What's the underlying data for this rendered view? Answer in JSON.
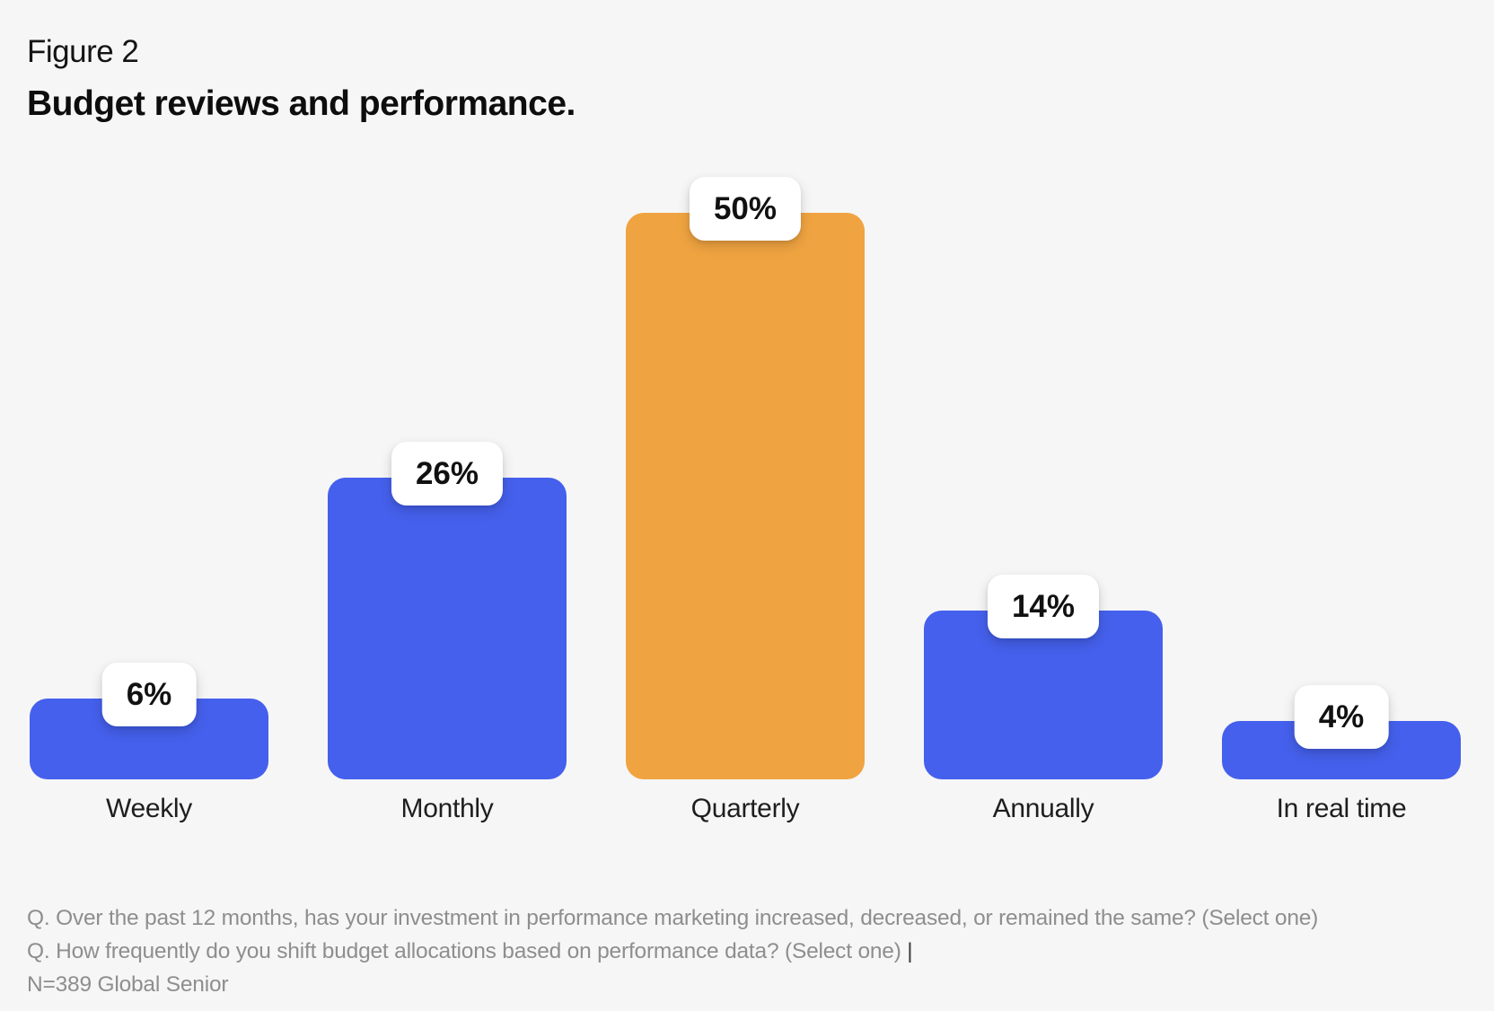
{
  "page": {
    "background": "#f6f6f6"
  },
  "header": {
    "figure_label": "Figure 2",
    "title": "Budget reviews and performance."
  },
  "colors": {
    "bar_blue": "#4560ec",
    "bar_orange": "#f0a441",
    "badge_background": "#ffffff",
    "badge_text": "#111111",
    "category_label_text": "#1e1e1e",
    "footnote_text": "#8e8e8e"
  },
  "chart_data": {
    "type": "bar",
    "title": "Budget reviews and performance.",
    "figure_label": "Figure 2",
    "categories": [
      "Weekly",
      "Monthly",
      "Quarterly",
      "Annually",
      "In real time"
    ],
    "values": [
      6,
      26,
      50,
      14,
      4
    ],
    "value_labels": [
      "6%",
      "26%",
      "50%",
      "14%",
      "4%"
    ],
    "bar_colors": [
      "#4560ec",
      "#4560ec",
      "#f0a441",
      "#4560ec",
      "#4560ec"
    ],
    "highlight_category": "Quarterly",
    "unit": "%",
    "xlabel": "",
    "ylabel": "",
    "ylim": [
      0,
      50
    ],
    "grid": false,
    "legend": false,
    "value_label_style": "white-rounded-badge-above-bar"
  },
  "footnotes": {
    "line1": "Q. Over the past 12 months, has your investment in performance marketing increased, decreased, or remained the same? (Select one)",
    "line2": "Q. How frequently do you shift budget allocations based on performance data? (Select one)",
    "cursor": "|",
    "line3": "N=389 Global Senior"
  }
}
